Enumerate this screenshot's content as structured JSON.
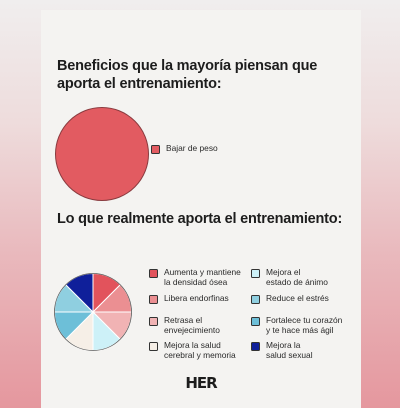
{
  "chart_data": [
    {
      "type": "pie",
      "title": "Beneficios que la mayoría piensan que aporta el entrenamiento:",
      "slices": [
        {
          "label": "Bajar de peso",
          "value": 1,
          "color": "#e25b61"
        }
      ],
      "legend_position": "right"
    },
    {
      "type": "pie",
      "title": "Lo que realmente aporta el entrenamiento:",
      "slices": [
        {
          "label": "Aumenta y mantiene la densidad ósea",
          "value": 1,
          "color": "#e2535c"
        },
        {
          "label": "Libera endorfinas",
          "value": 1,
          "color": "#eb8f92"
        },
        {
          "label": "Retrasa el envejecimiento",
          "value": 1,
          "color": "#f1b3b4"
        },
        {
          "label": "Mejora la salud cerebral y memoria",
          "value": 1,
          "color": "#f6efe7"
        },
        {
          "label": "Mejora el estado de ánimo",
          "value": 1,
          "color": "#cdf1f8"
        },
        {
          "label": "Reduce el estrés",
          "value": 1,
          "color": "#8fcfe0"
        },
        {
          "label": "Fortalece tu corazón y te hace más ágil",
          "value": 1,
          "color": "#6dbfd8"
        },
        {
          "label": "Mejora la salud sexual",
          "value": 1,
          "color": "#0f1f9a"
        }
      ],
      "legend_position": "right"
    }
  ],
  "legend2_lines": [
    [
      "Aumenta y mantiene",
      "la densidad ósea"
    ],
    [
      "Libera endorfinas"
    ],
    [
      "Retrasa el",
      "envejecimiento"
    ],
    [
      "Mejora la salud",
      "cerebral y memoria"
    ],
    [
      "Mejora el",
      "estado de ánimo"
    ],
    [
      "Reduce el estrés"
    ],
    [
      "Fortalece tu corazón",
      "y te hace más ágil"
    ],
    [
      "Mejora la",
      "salud sexual"
    ]
  ],
  "brand": "HER"
}
